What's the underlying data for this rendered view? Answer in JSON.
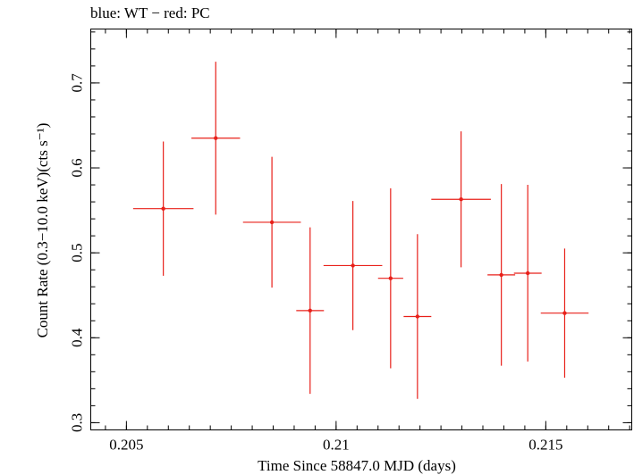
{
  "chart_data": {
    "type": "scatter",
    "title": "blue: WT − red: PC",
    "xlabel": "Time Since 58847.0 MJD (days)",
    "ylabel": "Count Rate (0.3−10.0 keV)(cts s⁻¹)",
    "xlim": [
      0.20415,
      0.21705
    ],
    "ylim": [
      0.2915,
      0.7635
    ],
    "x_ticks": [
      0.205,
      0.21,
      0.215
    ],
    "x_tick_labels": [
      "0.205",
      "0.21",
      "0.215"
    ],
    "y_ticks": [
      0.3,
      0.4,
      0.5,
      0.6,
      0.7
    ],
    "y_tick_labels": [
      "0.3",
      "0.4",
      "0.5",
      "0.6",
      "0.7"
    ],
    "grid": false,
    "series": [
      {
        "color": "#e8201a",
        "points": [
          {
            "x": 0.20588,
            "xerr": 0.00072,
            "y": 0.552,
            "yerr": 0.079
          },
          {
            "x": 0.20713,
            "xerr": 0.00058,
            "y": 0.635,
            "yerr": 0.09
          },
          {
            "x": 0.20847,
            "xerr": 0.00069,
            "y": 0.536,
            "yerr": 0.077
          },
          {
            "x": 0.20938,
            "xerr": 0.00033,
            "y": 0.432,
            "yerr": 0.098
          },
          {
            "x": 0.2104,
            "xerr": 0.0007,
            "y": 0.485,
            "yerr": 0.076
          },
          {
            "x": 0.2113,
            "xerr": 0.0003,
            "y": 0.47,
            "yerr": 0.106
          },
          {
            "x": 0.21194,
            "xerr": 0.00033,
            "y": 0.425,
            "yerr": 0.097
          },
          {
            "x": 0.21298,
            "xerr": 0.00071,
            "y": 0.563,
            "yerr": 0.08
          },
          {
            "x": 0.21394,
            "xerr": 0.00033,
            "y": 0.474,
            "yerr": 0.107
          },
          {
            "x": 0.21457,
            "xerr": 0.00033,
            "y": 0.476,
            "yerr": 0.104
          },
          {
            "x": 0.21545,
            "xerr": 0.00057,
            "y": 0.429,
            "yerr": 0.076
          }
        ]
      }
    ]
  }
}
